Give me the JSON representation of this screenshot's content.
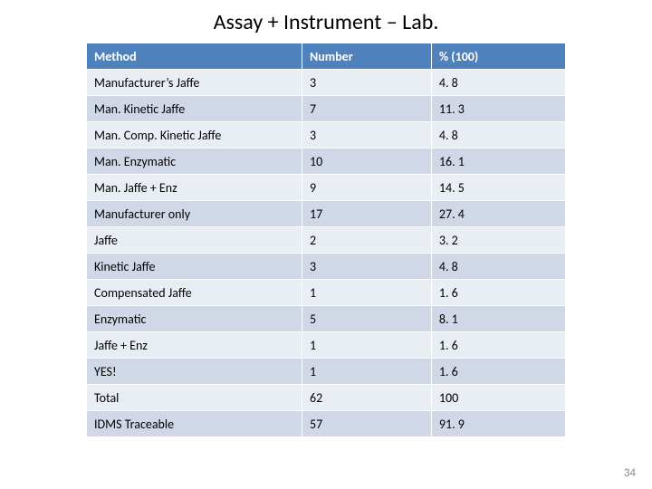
{
  "title": "Assay + Instrument – Lab.",
  "page_number": "34",
  "table": {
    "type": "table",
    "header_bg": "#4f81bd",
    "header_fg": "#ffffff",
    "row_bg_odd": "#e9edf4",
    "row_bg_even": "#d0d8e8",
    "border_color": "#ffffff",
    "font_family": "Calibri, Arial, sans-serif",
    "header_fontsize": 14,
    "cell_fontsize": 14,
    "col_widths_pct": [
      45,
      27,
      28
    ],
    "columns": [
      "Method",
      "Number",
      "% (100)"
    ],
    "rows": [
      [
        "Manufacturer’s Jaffe",
        "3",
        "4. 8"
      ],
      [
        "Man. Kinetic Jaffe",
        "7",
        "11. 3"
      ],
      [
        "Man. Comp. Kinetic Jaffe",
        "3",
        "4. 8"
      ],
      [
        "Man. Enzymatic",
        "10",
        "16. 1"
      ],
      [
        "Man. Jaffe + Enz",
        "9",
        "14. 5"
      ],
      [
        "Manufacturer only",
        "17",
        "27. 4"
      ],
      [
        "Jaffe",
        "2",
        "3. 2"
      ],
      [
        "Kinetic Jaffe",
        "3",
        "4. 8"
      ],
      [
        "Compensated Jaffe",
        "1",
        "1. 6"
      ],
      [
        "Enzymatic",
        "5",
        "8. 1"
      ],
      [
        "Jaffe + Enz",
        "1",
        "1. 6"
      ],
      [
        "YES!",
        "1",
        "1. 6"
      ],
      [
        "Total",
        "62",
        "100"
      ],
      [
        "IDMS Traceable",
        "57",
        "91. 9"
      ]
    ]
  }
}
